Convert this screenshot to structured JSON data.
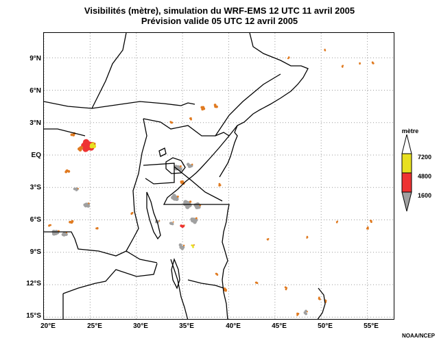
{
  "title_line1": "Visibilités (mètre), simulation du WRF-EMS 12 UTC 11 avril 2005",
  "title_line2": "Prévision valide 05 UTC 12 avril 2005",
  "credit": "NOAA/NCEP",
  "map": {
    "lon_range": [
      20,
      58
    ],
    "lat_range": [
      -15.3,
      11.3
    ],
    "lat_labels": [
      {
        "lat": 9,
        "label": "9°N"
      },
      {
        "lat": 6,
        "label": "6°N"
      },
      {
        "lat": 3,
        "label": "3°N"
      },
      {
        "lat": 0,
        "label": "EQ"
      },
      {
        "lat": -3,
        "label": "3°S"
      },
      {
        "lat": -6,
        "label": "6°S"
      },
      {
        "lat": -9,
        "label": "9°S"
      },
      {
        "lat": -12,
        "label": "12°S"
      },
      {
        "lat": -15,
        "label": "15°S"
      }
    ],
    "lon_labels": [
      {
        "lon": 20,
        "label": "20°E"
      },
      {
        "lon": 25,
        "label": "25°E"
      },
      {
        "lon": 30,
        "label": "30°E"
      },
      {
        "lon": 35,
        "label": "35°E"
      },
      {
        "lon": 40,
        "label": "40°E"
      },
      {
        "lon": 45,
        "label": "45°E"
      },
      {
        "lon": 50,
        "label": "50°E"
      },
      {
        "lon": 55,
        "label": "55°E"
      }
    ],
    "grid": "dotted"
  },
  "legend": {
    "title": "mètre",
    "levels": [
      {
        "value": "7200",
        "color": "#e8e020"
      },
      {
        "value": "4800",
        "color": "#ee3333"
      },
      {
        "value": "1600",
        "color": "#a0a0a0"
      }
    ]
  },
  "visibility_patches": [
    {
      "lon": 24.8,
      "lat": 0.8,
      "level": "red",
      "r": 1.0
    },
    {
      "lon": 25.2,
      "lat": 0.9,
      "level": "yellow",
      "r": 0.6
    },
    {
      "lon": 24.0,
      "lat": 0.6,
      "level": "orange",
      "r": 0.5
    },
    {
      "lon": 23.2,
      "lat": 1.9,
      "level": "orange",
      "r": 0.4
    },
    {
      "lon": 22.5,
      "lat": -1.5,
      "level": "orange",
      "r": 0.4
    },
    {
      "lon": 23.5,
      "lat": -3.2,
      "level": "gray",
      "r": 0.4
    },
    {
      "lon": 24.6,
      "lat": -4.6,
      "level": "gray",
      "r": 0.5
    },
    {
      "lon": 23.0,
      "lat": -6.2,
      "level": "orange",
      "r": 0.4
    },
    {
      "lon": 22.2,
      "lat": -7.3,
      "level": "gray",
      "r": 0.5
    },
    {
      "lon": 21.3,
      "lat": -7.2,
      "level": "gray",
      "r": 0.6
    },
    {
      "lon": 20.6,
      "lat": -6.5,
      "level": "orange",
      "r": 0.3
    },
    {
      "lon": 25.8,
      "lat": -6.8,
      "level": "orange",
      "r": 0.3
    },
    {
      "lon": 29.5,
      "lat": -5.4,
      "level": "orange",
      "r": 0.3
    },
    {
      "lon": 34.5,
      "lat": -1.2,
      "level": "gray",
      "r": 0.6
    },
    {
      "lon": 35.8,
      "lat": -1.0,
      "level": "gray",
      "r": 0.5
    },
    {
      "lon": 35.0,
      "lat": -2.5,
      "level": "orange",
      "r": 0.4
    },
    {
      "lon": 34.2,
      "lat": -4.0,
      "level": "gray",
      "r": 0.6
    },
    {
      "lon": 35.5,
      "lat": -4.5,
      "level": "gray",
      "r": 0.7
    },
    {
      "lon": 36.6,
      "lat": -4.8,
      "level": "gray",
      "r": 0.6
    },
    {
      "lon": 36.2,
      "lat": -6.0,
      "level": "gray",
      "r": 0.6
    },
    {
      "lon": 35.0,
      "lat": -6.6,
      "level": "red",
      "r": 0.4
    },
    {
      "lon": 33.8,
      "lat": -6.3,
      "level": "gray",
      "r": 0.4
    },
    {
      "lon": 32.3,
      "lat": -6.2,
      "level": "gray",
      "r": 0.4
    },
    {
      "lon": 34.9,
      "lat": -8.5,
      "level": "gray",
      "r": 0.5
    },
    {
      "lon": 36.1,
      "lat": -8.4,
      "level": "yellow",
      "r": 0.3
    },
    {
      "lon": 39.0,
      "lat": -2.8,
      "level": "orange",
      "r": 0.3
    },
    {
      "lon": 37.2,
      "lat": 4.4,
      "level": "orange",
      "r": 0.4
    },
    {
      "lon": 38.6,
      "lat": 4.5,
      "level": "orange",
      "r": 0.4
    },
    {
      "lon": 35.9,
      "lat": 3.4,
      "level": "orange",
      "r": 0.3
    },
    {
      "lon": 33.8,
      "lat": 3.0,
      "level": "orange",
      "r": 0.3
    },
    {
      "lon": 38.7,
      "lat": -11.0,
      "level": "orange",
      "r": 0.3
    },
    {
      "lon": 39.6,
      "lat": -12.5,
      "level": "orange",
      "r": 0.4
    },
    {
      "lon": 43.0,
      "lat": -11.8,
      "level": "orange",
      "r": 0.3
    },
    {
      "lon": 46.2,
      "lat": -12.3,
      "level": "orange",
      "r": 0.3
    },
    {
      "lon": 48.3,
      "lat": -14.6,
      "level": "gray",
      "r": 0.4
    },
    {
      "lon": 47.5,
      "lat": -14.7,
      "level": "orange",
      "r": 0.3
    },
    {
      "lon": 49.8,
      "lat": -13.3,
      "level": "orange",
      "r": 0.3
    },
    {
      "lon": 50.5,
      "lat": -13.5,
      "level": "orange",
      "r": 0.3
    },
    {
      "lon": 55.0,
      "lat": -6.8,
      "level": "orange",
      "r": 0.3
    },
    {
      "lon": 55.4,
      "lat": -6.1,
      "level": "orange",
      "r": 0.3
    },
    {
      "lon": 50.4,
      "lat": 9.7,
      "level": "orange",
      "r": 0.2
    },
    {
      "lon": 54.2,
      "lat": 8.5,
      "level": "orange",
      "r": 0.2
    },
    {
      "lon": 55.6,
      "lat": 8.5,
      "level": "orange",
      "r": 0.3
    },
    {
      "lon": 52.3,
      "lat": 8.2,
      "level": "orange",
      "r": 0.2
    },
    {
      "lon": 46.5,
      "lat": 9.0,
      "level": "orange",
      "r": 0.2
    },
    {
      "lon": 44.2,
      "lat": -7.8,
      "level": "orange",
      "r": 0.2
    },
    {
      "lon": 48.5,
      "lat": -7.6,
      "level": "orange",
      "r": 0.2
    },
    {
      "lon": 51.7,
      "lat": -6.2,
      "level": "orange",
      "r": 0.2
    }
  ]
}
